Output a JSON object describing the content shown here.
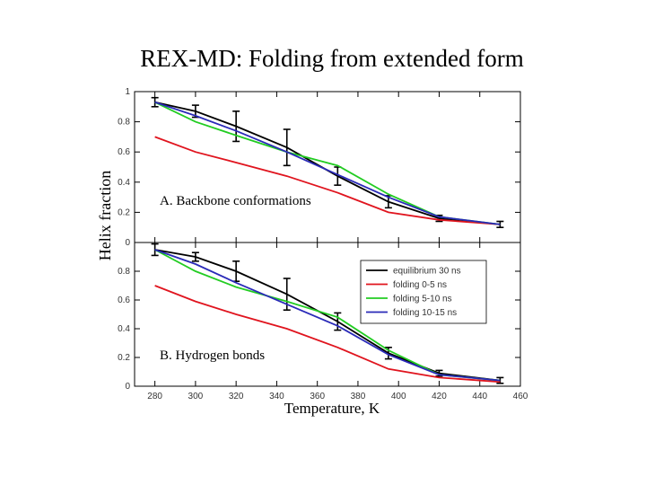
{
  "slide": {
    "title": "REX-MD: Folding from extended form"
  },
  "colors": {
    "equilibrium": "#000000",
    "folding_0_5": "#e0141e",
    "folding_5_10": "#22cc22",
    "folding_10_15": "#2a2ab8"
  },
  "chart_data": [
    {
      "type": "line",
      "panel": "top",
      "annotation": "A. Backbone conformations",
      "ylabel": "Helix fraction",
      "xlabel": "",
      "xlim": [
        270,
        460
      ],
      "ylim": [
        0,
        1
      ],
      "x_ticks": [],
      "y_ticks": [
        {
          "v": 0.2,
          "label": "0.2"
        },
        {
          "v": 0.4,
          "label": "0.4"
        },
        {
          "v": 0.6,
          "label": "0.6"
        },
        {
          "v": 0.8,
          "label": "0.8"
        },
        {
          "v": 1.0,
          "label": "1"
        }
      ],
      "series": [
        {
          "name": "equilibrium 30 ns",
          "color": "#000000",
          "x": [
            280,
            300,
            320,
            345,
            370,
            395,
            420,
            450
          ],
          "y": [
            0.93,
            0.87,
            0.77,
            0.63,
            0.44,
            0.27,
            0.16,
            0.12
          ],
          "err": [
            0.03,
            0.04,
            0.1,
            0.12,
            0.06,
            0.04,
            0.02,
            0.02
          ]
        },
        {
          "name": "folding 0-5 ns",
          "color": "#e0141e",
          "x": [
            280,
            300,
            320,
            345,
            370,
            395,
            420,
            450
          ],
          "y": [
            0.7,
            0.6,
            0.53,
            0.44,
            0.33,
            0.2,
            0.15,
            0.12
          ]
        },
        {
          "name": "folding 5-10 ns",
          "color": "#22cc22",
          "x": [
            280,
            300,
            320,
            345,
            370,
            395,
            420,
            450
          ],
          "y": [
            0.93,
            0.8,
            0.71,
            0.6,
            0.51,
            0.32,
            0.17,
            0.12
          ]
        },
        {
          "name": "folding 10-15 ns",
          "color": "#2a2ab8",
          "x": [
            280,
            300,
            320,
            345,
            370,
            395,
            420,
            450
          ],
          "y": [
            0.93,
            0.84,
            0.74,
            0.6,
            0.45,
            0.3,
            0.17,
            0.12
          ]
        }
      ]
    },
    {
      "type": "line",
      "panel": "bottom",
      "annotation": "B. Hydrogen bonds",
      "xlabel": "Temperature, K",
      "ylabel": "Helix fraction",
      "xlim": [
        270,
        460
      ],
      "ylim": [
        0,
        1
      ],
      "x_ticks": [
        {
          "v": 280,
          "label": "280"
        },
        {
          "v": 300,
          "label": "300"
        },
        {
          "v": 320,
          "label": "320"
        },
        {
          "v": 340,
          "label": "340"
        },
        {
          "v": 360,
          "label": "360"
        },
        {
          "v": 380,
          "label": "380"
        },
        {
          "v": 400,
          "label": "400"
        },
        {
          "v": 420,
          "label": "420"
        },
        {
          "v": 440,
          "label": "440"
        },
        {
          "v": 460,
          "label": "460"
        }
      ],
      "y_ticks": [
        {
          "v": 0,
          "label": "0"
        },
        {
          "v": 0.2,
          "label": "0.2"
        },
        {
          "v": 0.4,
          "label": "0.4"
        },
        {
          "v": 0.6,
          "label": "0.6"
        },
        {
          "v": 0.8,
          "label": "0.8"
        }
      ],
      "top_tick_label": "0",
      "legend": {
        "position": "top-right",
        "entries": [
          "equilibrium 30 ns",
          "folding 0-5 ns",
          "folding 5-10 ns",
          "folding 10-15 ns"
        ]
      },
      "series": [
        {
          "name": "equilibrium 30 ns",
          "color": "#000000",
          "x": [
            280,
            300,
            320,
            345,
            370,
            395,
            420,
            450
          ],
          "y": [
            0.95,
            0.9,
            0.8,
            0.64,
            0.45,
            0.23,
            0.09,
            0.04
          ],
          "err": [
            0.04,
            0.03,
            0.07,
            0.11,
            0.06,
            0.04,
            0.02,
            0.02
          ]
        },
        {
          "name": "folding 0-5 ns",
          "color": "#e0141e",
          "x": [
            280,
            300,
            320,
            345,
            370,
            395,
            420,
            450
          ],
          "y": [
            0.7,
            0.59,
            0.5,
            0.4,
            0.27,
            0.12,
            0.06,
            0.03
          ]
        },
        {
          "name": "folding 5-10 ns",
          "color": "#22cc22",
          "x": [
            280,
            300,
            320,
            345,
            370,
            395,
            420,
            450
          ],
          "y": [
            0.95,
            0.8,
            0.69,
            0.59,
            0.48,
            0.25,
            0.08,
            0.04
          ]
        },
        {
          "name": "folding 10-15 ns",
          "color": "#2a2ab8",
          "x": [
            280,
            300,
            320,
            345,
            370,
            395,
            420,
            450
          ],
          "y": [
            0.95,
            0.85,
            0.72,
            0.57,
            0.42,
            0.22,
            0.08,
            0.04
          ]
        }
      ]
    }
  ]
}
